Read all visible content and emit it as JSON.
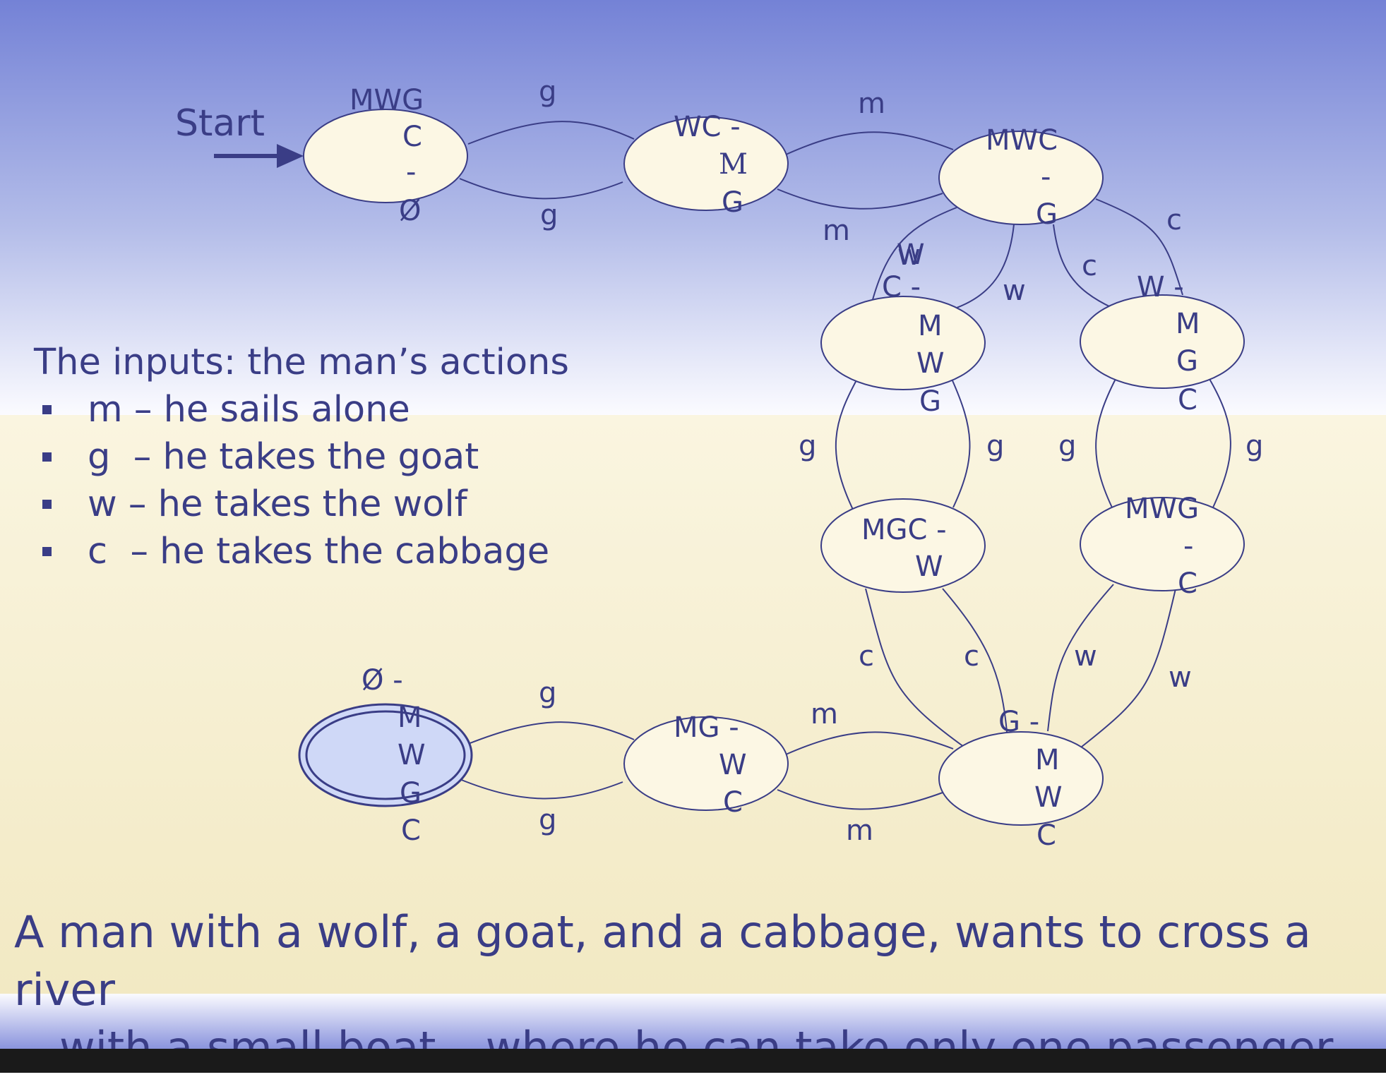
{
  "diagram": {
    "start_label": "Start",
    "states": [
      {
        "id": "s0",
        "lines": [
          "MWG",
          "C",
          "-",
          "Ø"
        ]
      },
      {
        "id": "s1",
        "lines": [
          "WC -",
          "M",
          "G"
        ]
      },
      {
        "id": "s2",
        "lines": [
          "MWC",
          "-",
          "G"
        ]
      },
      {
        "id": "s3",
        "lines": [
          "W",
          "C -",
          "M",
          "W",
          "G"
        ]
      },
      {
        "id": "s4",
        "lines": [
          "W -",
          "M",
          "G",
          "C"
        ]
      },
      {
        "id": "s5",
        "lines": [
          "MGC -",
          "W"
        ]
      },
      {
        "id": "s6",
        "lines": [
          "MWG",
          "-",
          "C"
        ]
      },
      {
        "id": "s7",
        "lines": [
          "G -",
          "M",
          "W",
          "C"
        ]
      },
      {
        "id": "s8",
        "lines": [
          "MG -",
          "W",
          "C"
        ]
      },
      {
        "id": "s9",
        "lines": [
          "Ø -",
          "M",
          "W",
          "G",
          "C"
        ],
        "final": true
      }
    ],
    "edges": [
      {
        "from": "s0",
        "to": "s1",
        "label": "g"
      },
      {
        "from": "s1",
        "to": "s0",
        "label": "g"
      },
      {
        "from": "s1",
        "to": "s2",
        "label": "m"
      },
      {
        "from": "s2",
        "to": "s1",
        "label": "m"
      },
      {
        "from": "s2",
        "to": "s3",
        "label": "w"
      },
      {
        "from": "s3",
        "to": "s2",
        "label": "w"
      },
      {
        "from": "s2",
        "to": "s4",
        "label": "c"
      },
      {
        "from": "s4",
        "to": "s2",
        "label": "c"
      },
      {
        "from": "s3",
        "to": "s5",
        "label": "g"
      },
      {
        "from": "s5",
        "to": "s3",
        "label": "g"
      },
      {
        "from": "s4",
        "to": "s6",
        "label": "g"
      },
      {
        "from": "s6",
        "to": "s4",
        "label": "g"
      },
      {
        "from": "s5",
        "to": "s7",
        "label": "c"
      },
      {
        "from": "s7",
        "to": "s5",
        "label": "c"
      },
      {
        "from": "s6",
        "to": "s7",
        "label": "w"
      },
      {
        "from": "s7",
        "to": "s6",
        "label": "w"
      },
      {
        "from": "s7",
        "to": "s8",
        "label": "m"
      },
      {
        "from": "s8",
        "to": "s7",
        "label": "m"
      },
      {
        "from": "s8",
        "to": "s9",
        "label": "g"
      },
      {
        "from": "s9",
        "to": "s8",
        "label": "g"
      }
    ]
  },
  "inputs": {
    "title": "The inputs: the man’s actions",
    "items": [
      "m – he sails alone",
      "g  – he takes the goat",
      "w – he takes the wolf",
      "c  – he takes the cabbage"
    ]
  },
  "caption": {
    "line1": "A man with a wolf, a goat, and a cabbage, wants to cross a river",
    "line2": "with a small boat – where he can take only one passenger"
  },
  "colors": {
    "ink": "#3a3d86",
    "state_fill": "#fcf7e4",
    "final_fill": "#cfd8f7",
    "bg_top": "#7482d6",
    "bg_bottom": "#f3ebc8"
  }
}
